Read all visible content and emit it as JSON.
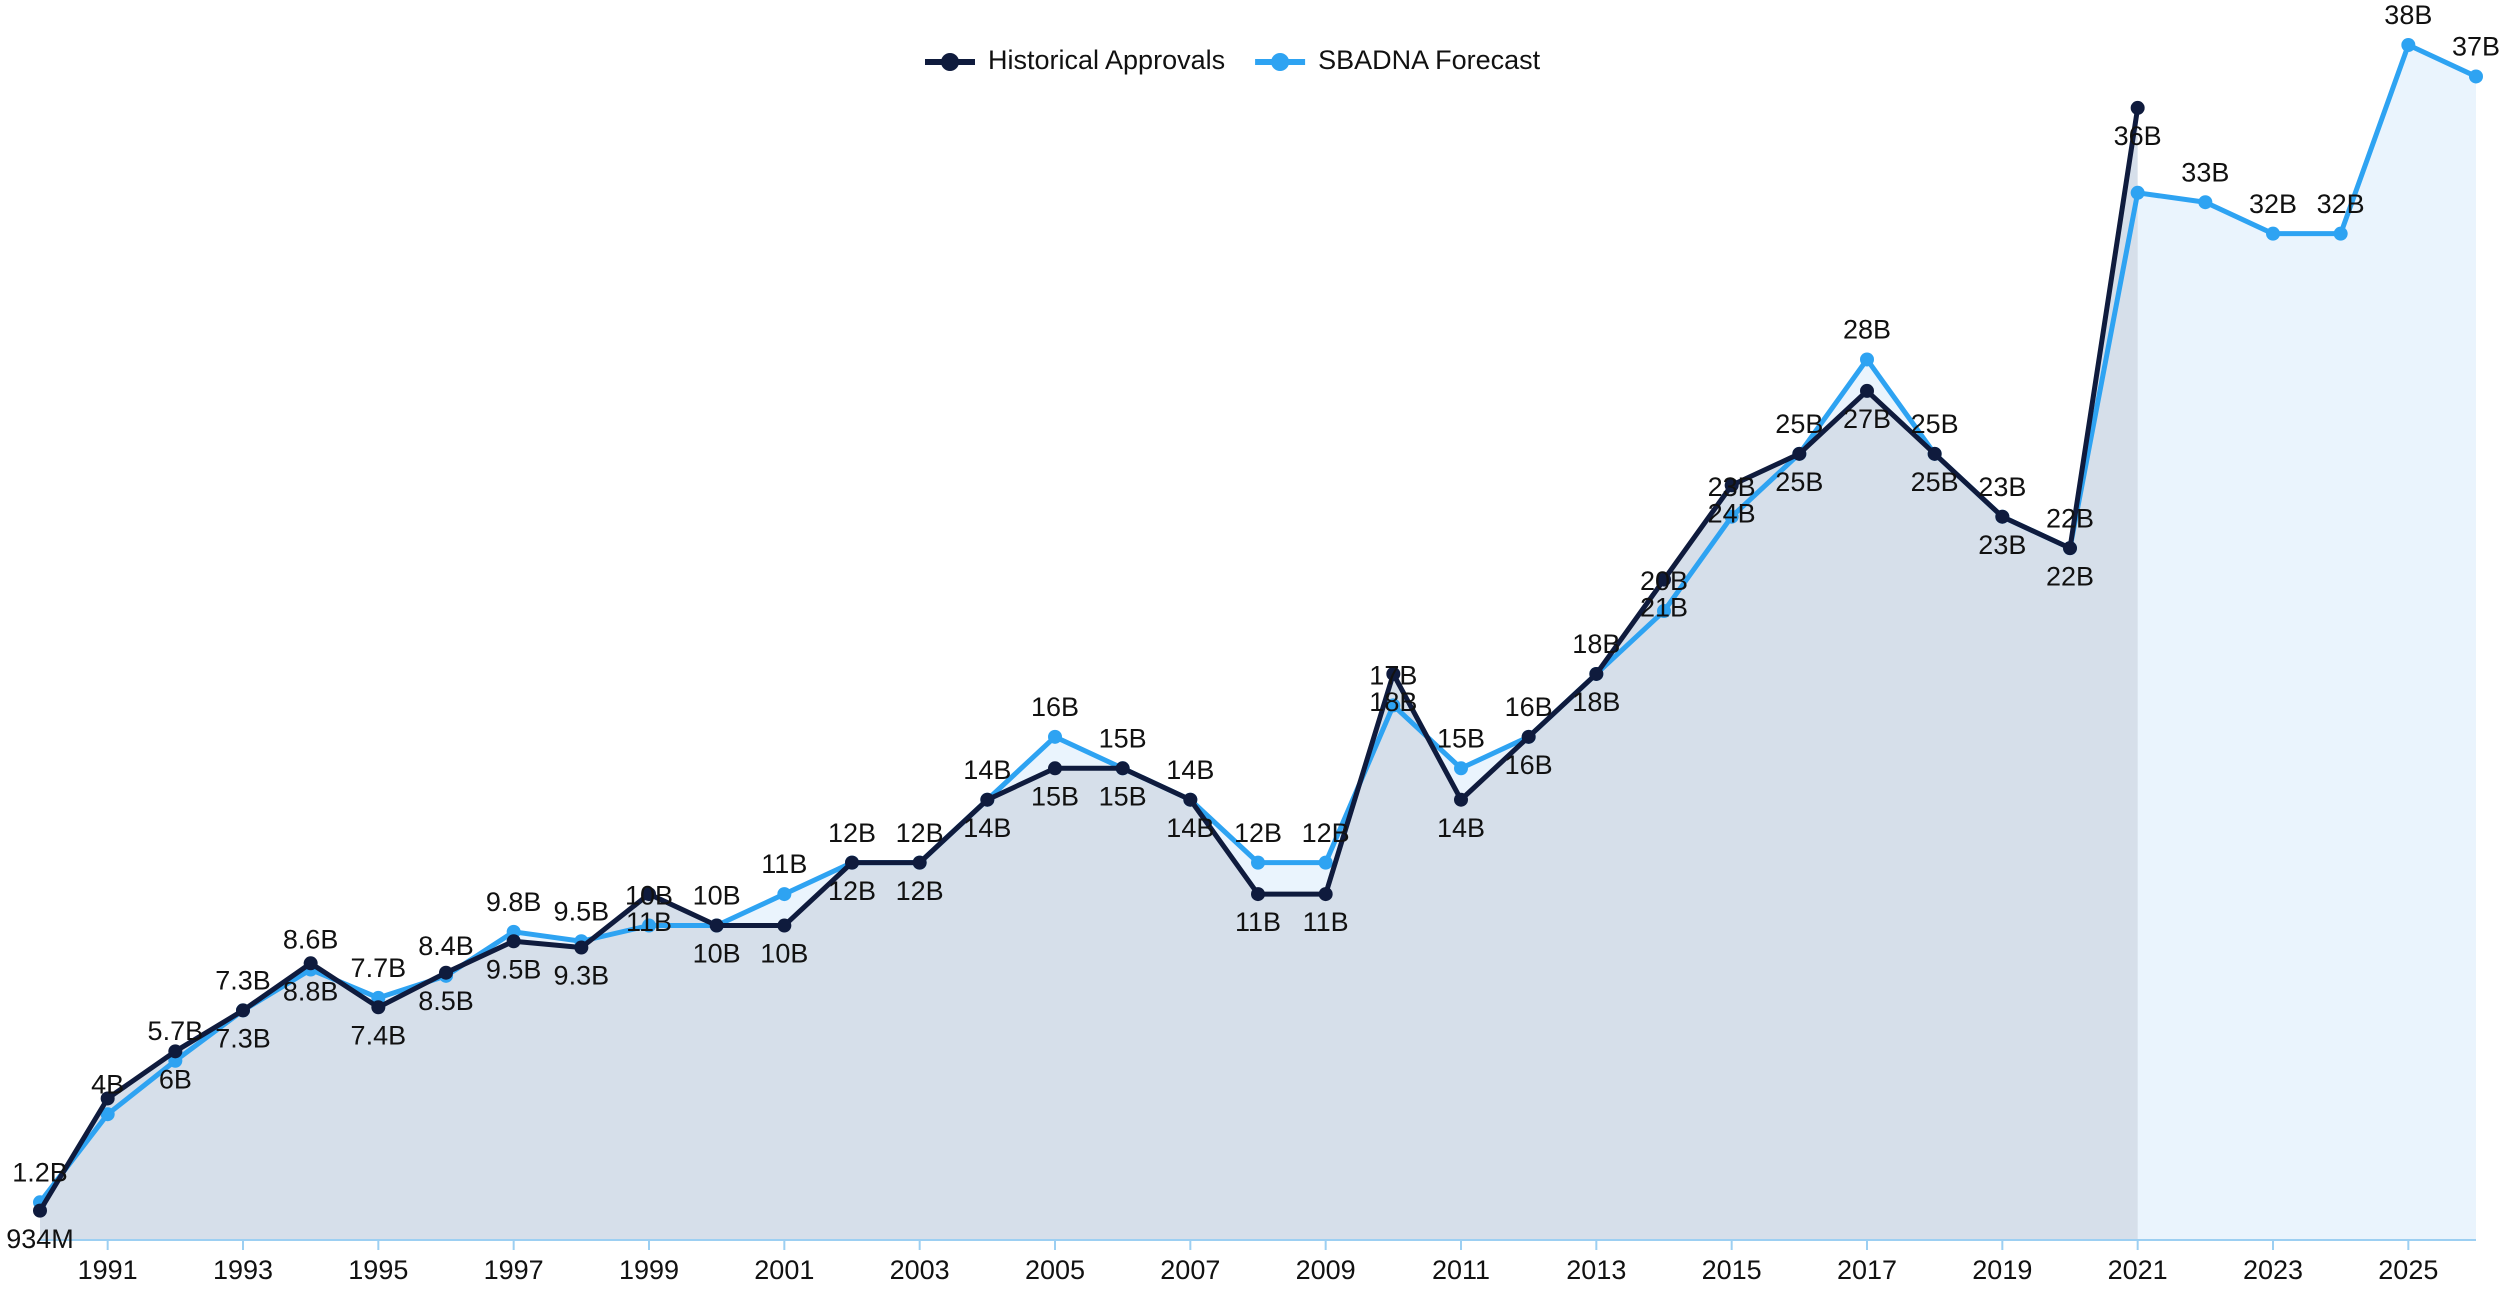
{
  "chart_data": {
    "type": "line",
    "x": [
      1990,
      1991,
      1992,
      1993,
      1994,
      1995,
      1996,
      1997,
      1998,
      1999,
      2000,
      2001,
      2002,
      2003,
      2004,
      2005,
      2006,
      2007,
      2008,
      2009,
      2010,
      2011,
      2012,
      2013,
      2014,
      2015,
      2016,
      2017,
      2018,
      2019,
      2020,
      2021,
      2022,
      2023,
      2024,
      2025,
      2026
    ],
    "xlim": [
      1990,
      2026
    ],
    "xticks": [
      1991,
      1993,
      1995,
      1997,
      1999,
      2001,
      2003,
      2005,
      2007,
      2009,
      2011,
      2013,
      2015,
      2017,
      2019,
      2021,
      2023,
      2025
    ],
    "legend": "top",
    "series": [
      {
        "name": "SBADNA Forecast",
        "color": "#2ea3f2",
        "area_color": "#eaf4fd",
        "values": [
          1.2,
          4,
          5.7,
          7.3,
          8.6,
          7.7,
          8.4,
          9.8,
          9.5,
          10,
          10,
          11,
          12,
          12,
          14,
          16,
          15,
          14,
          12,
          12,
          17,
          15,
          16,
          18,
          20,
          23,
          25,
          28,
          25,
          23,
          22,
          33.3,
          33,
          32,
          32,
          38,
          37
        ],
        "value_labels": [
          "1.2B",
          "4B",
          "5.7B",
          "7.3B",
          "8.6B",
          "7.7B",
          "8.4B",
          "9.8B",
          "9.5B",
          "10B",
          "10B",
          "11B",
          "12B",
          "12B",
          "14B",
          "16B",
          "15B",
          "14B",
          "12B",
          "12B",
          "17B",
          "15B",
          "16B",
          "18B",
          "20B",
          "23B",
          "25B",
          "28B",
          "25B",
          "23B",
          "22B",
          null,
          "33B",
          "32B",
          "32B",
          "38B",
          "37B"
        ]
      },
      {
        "name": "Historical Approvals",
        "color": "#0f1b3d",
        "area_color": "#d6dfea",
        "values": [
          0.934,
          4.5,
          6,
          7.3,
          8.8,
          7.4,
          8.5,
          9.5,
          9.3,
          11,
          10,
          10,
          12,
          12,
          14,
          15,
          15,
          14,
          11,
          11,
          18,
          14,
          16,
          18,
          21,
          24,
          25,
          27,
          25,
          23,
          22,
          36,
          null,
          null,
          null,
          null,
          null
        ],
        "value_labels": [
          "934M",
          null,
          "6B",
          "7.3B",
          "8.8B",
          "7.4B",
          "8.5B",
          "9.5B",
          "9.3B",
          "11B",
          "10B",
          "10B",
          "12B",
          "12B",
          "14B",
          "15B",
          "15B",
          "14B",
          "11B",
          "11B",
          "18B",
          "14B",
          "16B",
          "18B",
          "21B",
          "24B",
          "25B",
          "27B",
          "25B",
          "23B",
          "22B",
          "36B",
          null,
          null,
          null,
          null,
          null
        ]
      }
    ]
  }
}
